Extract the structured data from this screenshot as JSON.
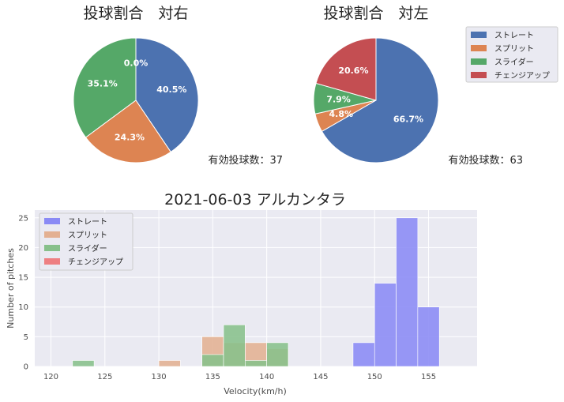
{
  "colors": {
    "straight": "#4c72b0",
    "split": "#dd8452",
    "slider": "#55a868",
    "changeup": "#c44e52",
    "hist_straight": "#8a8af5",
    "hist_split": "#e3b092",
    "hist_slider": "#87c08b",
    "hist_changeup": "#ee7f82",
    "axes_bg": "#eaeaf2",
    "grid": "#ffffff"
  },
  "chart_data": [
    {
      "type": "pie",
      "title": "投球割合　対右",
      "labels": [
        "ストレート",
        "スプリット",
        "スライダー",
        "チェンジアップ"
      ],
      "values": [
        40.5,
        24.3,
        35.1,
        0.0
      ],
      "value_labels": [
        "40.5%",
        "24.3%",
        "35.1%",
        "0.0%"
      ],
      "annotation": "有効投球数：37"
    },
    {
      "type": "pie",
      "title": "投球割合　対左",
      "labels": [
        "ストレート",
        "スプリット",
        "スライダー",
        "チェンジアップ"
      ],
      "values": [
        66.7,
        4.8,
        7.9,
        20.6
      ],
      "value_labels": [
        "66.7%",
        "4.8%",
        "7.9%",
        "20.6%"
      ],
      "annotation": "有効投球数：63",
      "legend": [
        "ストレート",
        "スプリット",
        "スライダー",
        "チェンジアップ"
      ],
      "legend_position": "right"
    },
    {
      "type": "bar",
      "subtype": "histogram",
      "title": "2021-06-03 アルカンタラ",
      "xlabel": "Velocity(km/h)",
      "ylabel": "Number of pitches",
      "xlim": [
        118.5,
        159.5
      ],
      "ylim": [
        0,
        26.3
      ],
      "xticks": [
        120,
        125,
        130,
        135,
        140,
        145,
        150,
        155
      ],
      "yticks": [
        0,
        5,
        10,
        15,
        20,
        25
      ],
      "grid": true,
      "legend_position": "top-left",
      "series": [
        {
          "name": "ストレート",
          "bins": [
            [
              148,
              150,
              4
            ],
            [
              150,
              152,
              14
            ],
            [
              152,
              154,
              25
            ],
            [
              154,
              156,
              10
            ]
          ]
        },
        {
          "name": "スプリット",
          "bins": [
            [
              130,
              132,
              1
            ],
            [
              134,
              136,
              5
            ],
            [
              136,
              138,
              4
            ],
            [
              138,
              140,
              4
            ],
            [
              140,
              142,
              3
            ]
          ]
        },
        {
          "name": "スライダー",
          "bins": [
            [
              122,
              124,
              1
            ],
            [
              134,
              136,
              2
            ],
            [
              136,
              138,
              7
            ],
            [
              138,
              140,
              1
            ],
            [
              140,
              142,
              4
            ]
          ]
        },
        {
          "name": "チェンジアップ",
          "bins": []
        }
      ]
    }
  ]
}
